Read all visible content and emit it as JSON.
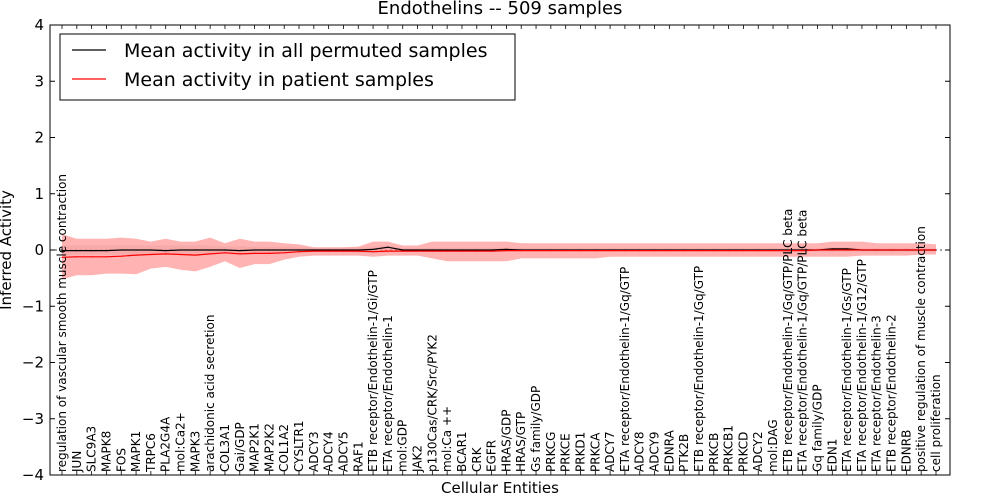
{
  "chart_data": {
    "type": "line",
    "title": "Endothelins -- 509 samples",
    "xlabel": "Cellular Entities",
    "ylabel": "Inferred Activity",
    "ylim": [
      -4,
      4
    ],
    "yticks": [
      -4,
      -3,
      -2,
      -1,
      0,
      1,
      2,
      3,
      4
    ],
    "grid": false,
    "legend_position": "top-left",
    "categories": [
      "regulation of vascular smooth muscle contraction",
      "JUN",
      "SLC9A3",
      "MAPK8",
      "FOS",
      "MAPK1",
      "TRPC6",
      "PLA2G4A",
      "mol:Ca2+",
      "MAPK3",
      "arachidonic acid secretion",
      "COL3A1",
      "Gai/GDP",
      "MAP2K1",
      "MAP2K2",
      "COL1A2",
      "CYSLTR1",
      "ADCY3",
      "ADCY4",
      "ADCY5",
      "RAF1",
      "ETB receptor/Endothelin-1/Gi/GTP",
      "ETA receptor/Endothelin-1",
      "mol:GDP",
      "JAK2",
      "p130Cas/CRK/Src/PYK2",
      "mol:Ca ++",
      "BCAR1",
      "CRK",
      "EGFR",
      "HRAS/GDP",
      "HRAS/GTP",
      "Gs family/GDP",
      "PRKCG",
      "PRKCE",
      "PRKD1",
      "PRKCA",
      "ADCY7",
      "ETA receptor/Endothelin-1/Gq/GTP",
      "ADCY8",
      "ADCY9",
      "EDNRA",
      "PTK2B",
      "ETB receptor/Endothelin-1/Gq/GTP",
      "PRKCB",
      "PRKCB1",
      "PRKCD",
      "ADCY2",
      "mol:DAG",
      "ETB receptor/Endothelin-1/Gq/GTP/PLC beta",
      "ETA receptor/Endothelin-1/Gq/GTP/PLC beta",
      "Gq family/GDP",
      "EDN1",
      "ETA receptor/Endothelin-1/Gs/GTP",
      "ETA receptor/Endothelin-1/G12/GTP",
      "ETA receptor/Endothelin-3",
      "ETB receptor/Endothelin-2",
      "EDNRB",
      "positive regulation of muscle contraction",
      "cell proliferation"
    ],
    "series": [
      {
        "name": "Mean activity in all permuted samples",
        "color": "#000000",
        "values": [
          -0.01,
          -0.01,
          -0.01,
          -0.01,
          0.0,
          0.0,
          0.0,
          -0.01,
          0.0,
          0.0,
          0.0,
          0.0,
          -0.01,
          0.0,
          0.0,
          0.0,
          0.0,
          0.0,
          0.0,
          0.0,
          0.0,
          0.01,
          0.05,
          0.0,
          0.0,
          0.0,
          0.0,
          0.0,
          0.0,
          0.0,
          0.01,
          0.0,
          0.0,
          0.0,
          0.0,
          0.0,
          0.0,
          0.0,
          0.0,
          0.0,
          0.0,
          0.0,
          0.0,
          0.0,
          0.0,
          0.0,
          0.0,
          0.0,
          0.0,
          0.0,
          0.0,
          0.0,
          0.02,
          0.02,
          0.0,
          0.0,
          0.0,
          0.0,
          0.0,
          0.0
        ],
        "band_lower": [
          -0.1,
          -0.08,
          -0.08,
          -0.08,
          -0.08,
          -0.08,
          -0.08,
          -0.08,
          -0.08,
          -0.08,
          -0.08,
          -0.06,
          -0.07,
          -0.06,
          -0.06,
          -0.06,
          -0.05,
          -0.04,
          -0.04,
          -0.04,
          -0.05,
          -0.06,
          -0.04,
          -0.03,
          -0.03,
          -0.04,
          -0.03,
          -0.03,
          -0.03,
          -0.03,
          -0.03,
          -0.03,
          -0.03,
          -0.03,
          -0.03,
          -0.03,
          -0.03,
          -0.03,
          -0.03,
          -0.03,
          -0.03,
          -0.03,
          -0.03,
          -0.03,
          -0.03,
          -0.03,
          -0.03,
          -0.03,
          -0.03,
          -0.03,
          -0.03,
          -0.03,
          -0.03,
          -0.03,
          -0.03,
          -0.03,
          -0.03,
          -0.03,
          -0.03,
          -0.03
        ],
        "band_upper": [
          0.08,
          0.08,
          0.08,
          0.08,
          0.08,
          0.08,
          0.08,
          0.08,
          0.08,
          0.08,
          0.08,
          0.06,
          0.07,
          0.06,
          0.06,
          0.06,
          0.05,
          0.04,
          0.04,
          0.04,
          0.05,
          0.06,
          0.08,
          0.03,
          0.03,
          0.04,
          0.03,
          0.03,
          0.03,
          0.03,
          0.05,
          0.03,
          0.03,
          0.03,
          0.03,
          0.03,
          0.03,
          0.03,
          0.03,
          0.03,
          0.03,
          0.03,
          0.03,
          0.03,
          0.03,
          0.03,
          0.03,
          0.03,
          0.03,
          0.03,
          0.03,
          0.03,
          0.05,
          0.05,
          0.03,
          0.03,
          0.03,
          0.03,
          0.03,
          0.03
        ]
      },
      {
        "name": "Mean activity in patient samples",
        "color": "#ff0000",
        "band_color": "#ff9999",
        "values": [
          -0.13,
          -0.12,
          -0.12,
          -0.12,
          -0.11,
          -0.09,
          -0.08,
          -0.07,
          -0.08,
          -0.09,
          -0.07,
          -0.05,
          -0.07,
          -0.06,
          -0.06,
          -0.05,
          -0.03,
          -0.02,
          -0.02,
          -0.02,
          -0.02,
          -0.03,
          -0.02,
          -0.02,
          -0.02,
          -0.02,
          -0.02,
          -0.02,
          -0.02,
          -0.02,
          -0.01,
          -0.01,
          -0.01,
          -0.01,
          -0.01,
          -0.01,
          -0.01,
          -0.01,
          -0.01,
          -0.01,
          -0.01,
          -0.01,
          -0.01,
          -0.01,
          -0.01,
          -0.01,
          -0.01,
          -0.01,
          -0.01,
          -0.01,
          -0.01,
          0.0,
          0.0,
          0.0,
          0.0,
          0.0,
          0.0,
          0.0,
          0.0,
          0.0
        ],
        "band_lower": [
          -0.52,
          -0.45,
          -0.45,
          -0.42,
          -0.42,
          -0.43,
          -0.33,
          -0.3,
          -0.35,
          -0.38,
          -0.3,
          -0.2,
          -0.32,
          -0.25,
          -0.25,
          -0.17,
          -0.12,
          -0.1,
          -0.1,
          -0.1,
          -0.1,
          -0.12,
          -0.1,
          -0.1,
          -0.1,
          -0.15,
          -0.2,
          -0.2,
          -0.2,
          -0.2,
          -0.2,
          -0.15,
          -0.15,
          -0.15,
          -0.15,
          -0.15,
          -0.15,
          -0.12,
          -0.12,
          -0.12,
          -0.12,
          -0.12,
          -0.12,
          -0.12,
          -0.12,
          -0.12,
          -0.12,
          -0.12,
          -0.12,
          -0.12,
          -0.12,
          -0.12,
          -0.12,
          -0.12,
          -0.1,
          -0.1,
          -0.1,
          -0.1,
          -0.08,
          -0.08
        ],
        "band_upper": [
          0.28,
          0.2,
          0.2,
          0.2,
          0.22,
          0.2,
          0.15,
          0.2,
          0.15,
          0.15,
          0.22,
          0.12,
          0.2,
          0.15,
          0.15,
          0.12,
          0.1,
          0.05,
          0.05,
          0.05,
          0.06,
          0.15,
          0.15,
          0.08,
          0.08,
          0.15,
          0.15,
          0.15,
          0.15,
          0.15,
          0.15,
          0.12,
          0.12,
          0.12,
          0.12,
          0.12,
          0.12,
          0.12,
          0.12,
          0.12,
          0.12,
          0.12,
          0.12,
          0.12,
          0.12,
          0.12,
          0.12,
          0.12,
          0.12,
          0.12,
          0.12,
          0.12,
          0.15,
          0.15,
          0.15,
          0.12,
          0.12,
          0.12,
          0.12,
          0.1
        ]
      }
    ]
  }
}
